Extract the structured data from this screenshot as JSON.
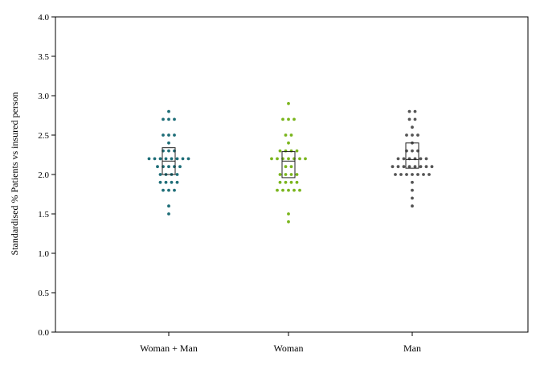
{
  "chart_data": {
    "type": "scatter",
    "subtype": "dot-plot-with-boxes",
    "title": "",
    "xlabel": "",
    "ylabel": "Standardised % Patients vs insured person",
    "ylim": [
      0,
      4
    ],
    "yticks": [
      "0.0",
      "0.5",
      "1.0",
      "1.5",
      "2.0",
      "2.5",
      "3.0",
      "3.5",
      "4.0"
    ],
    "grid": false,
    "legend": "none",
    "categories": [
      "Woman + Man",
      "Woman",
      "Man"
    ],
    "series": [
      {
        "category": "Woman + Man",
        "color": "#1f6e78",
        "values": [
          2.8,
          2.7,
          2.7,
          2.7,
          2.5,
          2.5,
          2.5,
          2.4,
          2.3,
          2.3,
          2.3,
          2.2,
          2.2,
          2.2,
          2.2,
          2.2,
          2.2,
          2.2,
          2.2,
          2.1,
          2.1,
          2.1,
          2.1,
          2.1,
          2.0,
          2.0,
          2.0,
          2.0,
          1.9,
          1.9,
          1.9,
          1.9,
          1.8,
          1.8,
          1.8,
          1.6,
          1.5
        ],
        "box": {
          "q1": 2.0,
          "median": 2.17,
          "q3": 2.34
        }
      },
      {
        "category": "Woman",
        "color": "#7ab51d",
        "values": [
          2.9,
          2.7,
          2.7,
          2.7,
          2.5,
          2.5,
          2.4,
          2.3,
          2.3,
          2.3,
          2.3,
          2.2,
          2.2,
          2.2,
          2.2,
          2.2,
          2.2,
          2.2,
          2.1,
          2.1,
          2.0,
          2.0,
          2.0,
          2.0,
          1.9,
          1.9,
          1.9,
          1.9,
          1.8,
          1.8,
          1.8,
          1.8,
          1.8,
          1.5,
          1.4
        ],
        "box": {
          "q1": 1.96,
          "median": 2.17,
          "q3": 2.29
        }
      },
      {
        "category": "Man",
        "color": "#555555",
        "values": [
          2.8,
          2.8,
          2.7,
          2.7,
          2.6,
          2.5,
          2.5,
          2.5,
          2.4,
          2.3,
          2.3,
          2.3,
          2.2,
          2.2,
          2.2,
          2.2,
          2.2,
          2.2,
          2.1,
          2.1,
          2.1,
          2.1,
          2.1,
          2.1,
          2.1,
          2.1,
          2.0,
          2.0,
          2.0,
          2.0,
          2.0,
          2.0,
          2.0,
          1.9,
          1.8,
          1.7,
          1.6
        ],
        "box": {
          "q1": 2.08,
          "median": 2.19,
          "q3": 2.4
        }
      }
    ]
  }
}
